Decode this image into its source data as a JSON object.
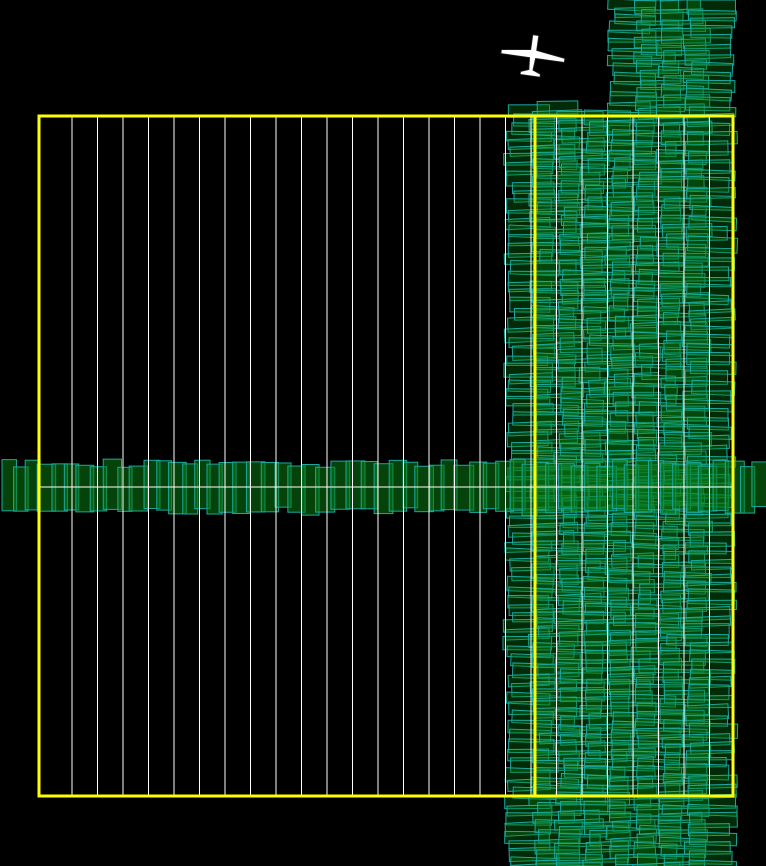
{
  "colors": {
    "background": "#000000",
    "survey_boundary": "#ffff00",
    "planned_flight_line": "#ffffff",
    "covered_swath_fill": "#0a7a14",
    "covered_swath_outline": "#1aa8a0"
  },
  "survey": {
    "planned_line_count": 26,
    "completed_line_count": 8,
    "cross_line_count": 1
  },
  "aircraft": {
    "icon": "airplane-icon"
  }
}
